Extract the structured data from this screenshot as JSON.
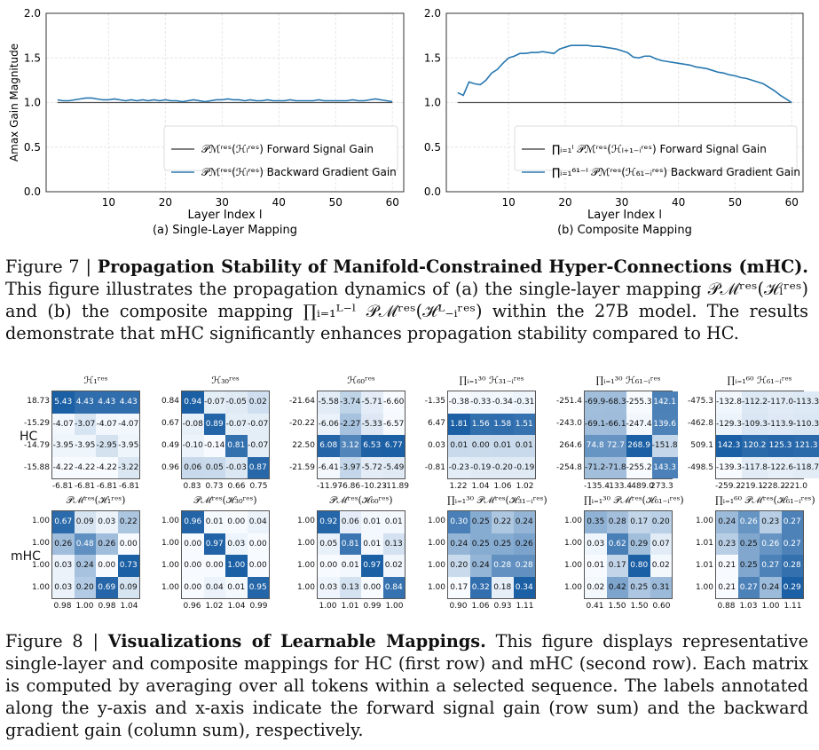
{
  "chart_data": [
    {
      "type": "line",
      "title": "",
      "subtitle": "(a) Single-Layer Mapping",
      "xlabel": "Layer Index l",
      "ylabel": "Amax Gain Magnitude",
      "xlim": [
        -1,
        62
      ],
      "ylim": [
        0,
        2
      ],
      "xticks": [
        10,
        20,
        30,
        40,
        50,
        60
      ],
      "yticks": [
        "0.0",
        "0.5",
        "1.0",
        "1.5",
        "2.0"
      ],
      "grid": true,
      "legend": "bottom-right",
      "series": [
        {
          "name": "𝒫ℳʳᵉˢ(ℋₗʳᵉˢ) Forward Signal Gain",
          "color": "#555555",
          "x": [
            1,
            60
          ],
          "y": [
            1.0,
            1.0
          ]
        },
        {
          "name": "𝒫ℳʳᵉˢ(ℋₗʳᵉˢ) Backward Gradient Gain",
          "color": "#2878b0",
          "x": [
            1,
            2,
            3,
            4,
            5,
            6,
            7,
            8,
            9,
            10,
            11,
            12,
            13,
            14,
            15,
            16,
            17,
            18,
            19,
            20,
            21,
            22,
            23,
            24,
            25,
            26,
            27,
            28,
            29,
            30,
            31,
            32,
            33,
            34,
            35,
            36,
            37,
            38,
            39,
            40,
            41,
            42,
            43,
            44,
            45,
            46,
            47,
            48,
            49,
            50,
            51,
            52,
            53,
            54,
            55,
            56,
            57,
            58,
            59,
            60
          ],
          "y": [
            1.03,
            1.02,
            1.02,
            1.03,
            1.04,
            1.05,
            1.05,
            1.04,
            1.03,
            1.03,
            1.04,
            1.03,
            1.02,
            1.03,
            1.02,
            1.03,
            1.02,
            1.03,
            1.02,
            1.03,
            1.02,
            1.02,
            1.01,
            1.02,
            1.03,
            1.02,
            1.01,
            1.02,
            1.03,
            1.03,
            1.04,
            1.03,
            1.03,
            1.02,
            1.03,
            1.02,
            1.02,
            1.03,
            1.02,
            1.02,
            1.02,
            1.03,
            1.02,
            1.02,
            1.02,
            1.02,
            1.03,
            1.02,
            1.02,
            1.02,
            1.02,
            1.02,
            1.03,
            1.02,
            1.02,
            1.03,
            1.04,
            1.03,
            1.02,
            1.01
          ]
        }
      ]
    },
    {
      "type": "line",
      "title": "",
      "subtitle": "(b) Composite Mapping",
      "xlabel": "Layer Index l",
      "ylabel": "",
      "xlim": [
        -1,
        62
      ],
      "ylim": [
        0,
        2
      ],
      "xticks": [
        10,
        20,
        30,
        40,
        50,
        60
      ],
      "yticks": [
        "0.0",
        "0.5",
        "1.0",
        "1.5",
        "2.0"
      ],
      "grid": true,
      "legend": "bottom-right",
      "series": [
        {
          "name": "∏ᵢ₌₁ˡ 𝒫ℳʳᵉˢ(ℋₗ₊₁₋ᵢʳᵉˢ) Forward Signal Gain",
          "color": "#555555",
          "x": [
            1,
            60
          ],
          "y": [
            1.0,
            1.0
          ]
        },
        {
          "name": "∏ᵢ₌₁⁶¹⁻ˡ 𝒫ℳʳᵉˢ(ℋ₆₁₋ᵢʳᵉˢ) Backward Gradient Gain",
          "color": "#2878b0",
          "x": [
            1,
            2,
            3,
            4,
            5,
            6,
            7,
            8,
            9,
            10,
            11,
            12,
            13,
            14,
            15,
            16,
            17,
            18,
            19,
            20,
            21,
            22,
            23,
            24,
            25,
            26,
            27,
            28,
            29,
            30,
            31,
            32,
            33,
            34,
            35,
            36,
            37,
            38,
            39,
            40,
            41,
            42,
            43,
            44,
            45,
            46,
            47,
            48,
            49,
            50,
            51,
            52,
            53,
            54,
            55,
            56,
            57,
            58,
            59,
            60
          ],
          "y": [
            1.11,
            1.08,
            1.23,
            1.21,
            1.2,
            1.25,
            1.33,
            1.37,
            1.44,
            1.5,
            1.52,
            1.55,
            1.55,
            1.56,
            1.56,
            1.57,
            1.56,
            1.55,
            1.6,
            1.62,
            1.64,
            1.64,
            1.64,
            1.64,
            1.63,
            1.63,
            1.62,
            1.61,
            1.6,
            1.58,
            1.56,
            1.51,
            1.5,
            1.52,
            1.52,
            1.49,
            1.47,
            1.46,
            1.45,
            1.44,
            1.43,
            1.42,
            1.4,
            1.39,
            1.38,
            1.36,
            1.34,
            1.33,
            1.31,
            1.3,
            1.28,
            1.27,
            1.25,
            1.23,
            1.21,
            1.17,
            1.13,
            1.08,
            1.04,
            1.0
          ]
        }
      ]
    }
  ],
  "figure7": {
    "label": "Figure 7 | ",
    "bold": "Propagation Stability of Manifold-Constrained Hyper-Connections (mHC).",
    "text": " This figure illustrates the propagation dynamics of (a) the single-layer mapping 𝒫ℳʳᵉˢ(ℋₗʳᵉˢ) and (b) the composite mapping ∏ᵢ₌₁ᴸ⁻ˡ 𝒫ℳʳᵉˢ(ℋᴸ₋ᵢʳᵉˢ) within the 27B model. The results demonstrate that mHC significantly enhances propagation stability compared to HC."
  },
  "figure8": {
    "label": "Figure 8 | ",
    "bold": "Visualizations of Learnable Mappings.",
    "text": " This figure displays representative single-layer and composite mappings for HC (first row) and mHC (second row). Each matrix is computed by averaging over all tokens within a selected sequence. The labels annotated along the y-axis and x-axis indicate the forward signal gain (row sum) and the backward gradient gain (column sum), respectively."
  },
  "row_labels": [
    "HC",
    "mHC"
  ],
  "heatmaps": [
    {
      "title": "ℋ₁ʳᵉˢ",
      "rows": [
        "18.73",
        "-15.29",
        "-14.79",
        "-15.88"
      ],
      "cols": [
        "-6.81",
        "-6.81",
        "-6.81",
        "-6.81"
      ],
      "v": [
        [
          5.43,
          4.43,
          4.43,
          4.43
        ],
        [
          -4.07,
          -3.07,
          -4.07,
          -4.07
        ],
        [
          -3.95,
          -3.95,
          -2.95,
          -3.95
        ],
        [
          -4.22,
          -4.22,
          -4.22,
          -3.22
        ]
      ]
    },
    {
      "title": "ℋ₃₀ʳᵉˢ",
      "rows": [
        "0.84",
        "0.67",
        "0.49",
        "0.96"
      ],
      "cols": [
        "0.83",
        "0.73",
        "0.66",
        "0.75"
      ],
      "v": [
        [
          0.94,
          -0.07,
          -0.05,
          0.02
        ],
        [
          -0.08,
          0.89,
          -0.07,
          -0.07
        ],
        [
          -0.1,
          -0.14,
          0.81,
          -0.07
        ],
        [
          0.06,
          0.05,
          -0.03,
          0.87
        ]
      ]
    },
    {
      "title": "ℋ₆₀ʳᵉˢ",
      "rows": [
        "-21.64",
        "-20.22",
        "22.50",
        "-21.59"
      ],
      "cols": [
        "-11.97",
        "-6.86",
        "-10.23",
        "-11.89"
      ],
      "v": [
        [
          -5.58,
          -3.74,
          -5.71,
          -6.6
        ],
        [
          -6.06,
          -2.27,
          -5.33,
          -6.57
        ],
        [
          6.08,
          3.12,
          6.53,
          6.77
        ],
        [
          -6.41,
          -3.97,
          -5.72,
          -5.49
        ]
      ]
    },
    {
      "title": "∏ᵢ₌₁³⁰ ℋ₃₁₋ᵢʳᵉˢ",
      "rows": [
        "-1.35",
        "6.47",
        "0.03",
        "-0.81"
      ],
      "cols": [
        "1.22",
        "1.04",
        "1.06",
        "1.02"
      ],
      "v": [
        [
          -0.38,
          -0.33,
          -0.34,
          -0.31
        ],
        [
          1.81,
          1.56,
          1.58,
          1.51
        ],
        [
          0.01,
          -0.0,
          0.01,
          0.01
        ],
        [
          -0.23,
          -0.19,
          -0.2,
          -0.19
        ]
      ]
    },
    {
      "title": "∏ᵢ₌₁³⁰ ℋ₆₁₋ᵢʳᵉˢ",
      "rows": [
        "-251.4",
        "-243.0",
        "264.6",
        "-254.8"
      ],
      "cols": [
        "-135.4",
        "-133.4",
        "-489.0",
        "273.3"
      ],
      "v": [
        [
          -69.9,
          -68.3,
          -255.3,
          142.1
        ],
        [
          -69.1,
          -66.1,
          -247.4,
          139.6
        ],
        [
          74.8,
          72.7,
          268.9,
          -151.8
        ],
        [
          -71.2,
          -71.8,
          -255.2,
          143.3
        ]
      ]
    },
    {
      "title": "∏ᵢ₌₁⁶⁰ ℋ₆₁₋ᵢʳᵉˢ",
      "rows": [
        "-475.3",
        "-462.8",
        "509.1",
        "-498.5"
      ],
      "cols": [
        "-259.2",
        "-219.1",
        "-228.2",
        "-221.0"
      ],
      "v": [
        [
          -132.8,
          -112.2,
          -117.0,
          -113.3
        ],
        [
          -129.3,
          -109.3,
          -113.9,
          -110.3
        ],
        [
          142.3,
          120.2,
          125.3,
          121.3
        ],
        [
          -139.3,
          -117.8,
          -122.6,
          -118.7
        ]
      ]
    },
    {
      "title": "𝒫ℳʳᵉˢ(ℋ₁ʳᵉˢ)",
      "rows": [
        "1.00",
        "1.00",
        "1.00",
        "1.00"
      ],
      "cols": [
        "0.98",
        "1.00",
        "0.98",
        "1.04"
      ],
      "v": [
        [
          0.67,
          0.09,
          0.03,
          0.22
        ],
        [
          0.26,
          0.48,
          0.26,
          0.0
        ],
        [
          0.03,
          0.24,
          0.0,
          0.73
        ],
        [
          0.03,
          0.2,
          0.69,
          0.09
        ]
      ]
    },
    {
      "title": "𝒫ℳʳᵉˢ(ℋ₃₀ʳᵉˢ)",
      "rows": [
        "1.00",
        "1.00",
        "1.00",
        "1.00"
      ],
      "cols": [
        "0.96",
        "1.02",
        "1.04",
        "0.99"
      ],
      "v": [
        [
          0.96,
          0.01,
          0.0,
          0.04
        ],
        [
          0.0,
          0.97,
          0.03,
          0.0
        ],
        [
          0.0,
          0.0,
          1.0,
          0.0
        ],
        [
          0.0,
          0.04,
          0.01,
          0.95
        ]
      ]
    },
    {
      "title": "𝒫ℳʳᵉˢ(ℋ₆₀ʳᵉˢ)",
      "rows": [
        "1.00",
        "1.00",
        "1.00",
        "1.00"
      ],
      "cols": [
        "1.00",
        "1.01",
        "0.99",
        "1.00"
      ],
      "v": [
        [
          0.92,
          0.06,
          0.01,
          0.01
        ],
        [
          0.05,
          0.81,
          0.01,
          0.13
        ],
        [
          0.0,
          0.01,
          0.97,
          0.02
        ],
        [
          0.03,
          0.13,
          0.0,
          0.84
        ]
      ]
    },
    {
      "title": "∏ᵢ₌₁³⁰ 𝒫ℳʳᵉˢ(ℋ₃₁₋ᵢʳᵉˢ)",
      "rows": [
        "1.00",
        "1.00",
        "1.00",
        "1.00"
      ],
      "cols": [
        "0.90",
        "1.06",
        "0.93",
        "1.11"
      ],
      "v": [
        [
          0.3,
          0.25,
          0.22,
          0.24
        ],
        [
          0.24,
          0.25,
          0.25,
          0.26
        ],
        [
          0.2,
          0.24,
          0.28,
          0.28
        ],
        [
          0.17,
          0.32,
          0.18,
          0.34
        ]
      ]
    },
    {
      "title": "∏ᵢ₌₁³⁰ 𝒫ℳʳᵉˢ(ℋ₆₁₋ᵢʳᵉˢ)",
      "rows": [
        "1.00",
        "1.00",
        "1.00",
        "1.00"
      ],
      "cols": [
        "0.41",
        "1.50",
        "1.50",
        "0.60"
      ],
      "v": [
        [
          0.35,
          0.28,
          0.17,
          0.2
        ],
        [
          0.03,
          0.62,
          0.29,
          0.07
        ],
        [
          0.01,
          0.17,
          0.8,
          0.02
        ],
        [
          0.02,
          0.42,
          0.25,
          0.31
        ]
      ]
    },
    {
      "title": "∏ᵢ₌₁⁶⁰ 𝒫ℳʳᵉˢ(ℋ₆₁₋ᵢʳᵉˢ)",
      "rows": [
        "1.00",
        "1.01",
        "1.01",
        "1.00"
      ],
      "cols": [
        "0.88",
        "1.03",
        "1.00",
        "1.11"
      ],
      "v": [
        [
          0.24,
          0.26,
          0.23,
          0.27
        ],
        [
          0.23,
          0.25,
          0.26,
          0.27
        ],
        [
          0.21,
          0.25,
          0.27,
          0.28
        ],
        [
          0.21,
          0.27,
          0.24,
          0.29
        ]
      ]
    }
  ]
}
